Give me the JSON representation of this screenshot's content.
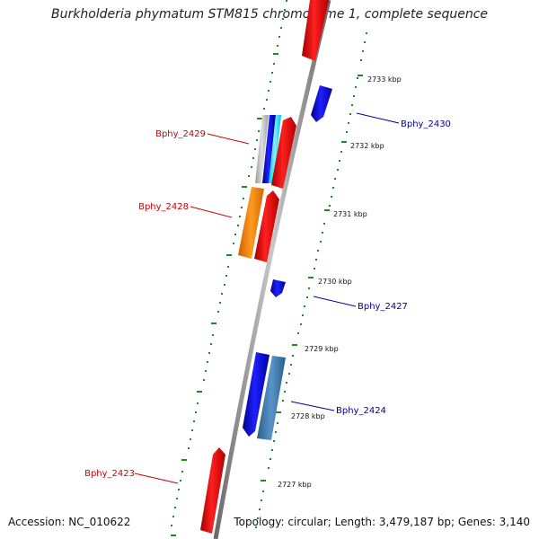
{
  "title": "Burkholderia phymatum STM815 chromosome 1, complete sequence",
  "footer": {
    "accession": "Accession: NC_010622",
    "summary": "Topology: circular; Length: 3,479,187 bp; Genes: 3,140"
  },
  "colors": {
    "forward_label": "#cc0000",
    "reverse_label": "#000099",
    "tick": "#228822",
    "backbone": "#888888"
  },
  "scale_ticks": [
    "2733 kbp",
    "2732 kbp",
    "2731 kbp",
    "2730 kbp",
    "2729 kbp",
    "2728 kbp",
    "2727 kbp"
  ],
  "gene_labels": [
    {
      "name": "Bphy_2430",
      "strand": "reverse"
    },
    {
      "name": "Bphy_2429",
      "strand": "forward"
    },
    {
      "name": "Bphy_2428",
      "strand": "forward"
    },
    {
      "name": "Bphy_2427",
      "strand": "reverse"
    },
    {
      "name": "Bphy_2424",
      "strand": "reverse"
    },
    {
      "name": "Bphy_2423",
      "strand": "forward"
    }
  ]
}
